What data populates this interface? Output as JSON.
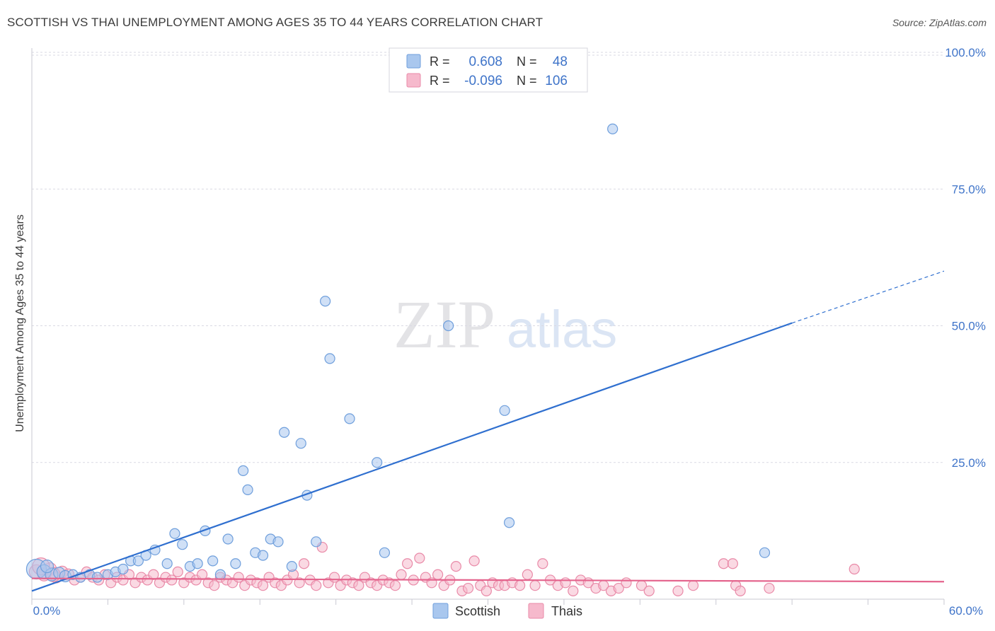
{
  "title": "SCOTTISH VS THAI UNEMPLOYMENT AMONG AGES 35 TO 44 YEARS CORRELATION CHART",
  "source": "Source: ZipAtlas.com",
  "watermark": {
    "zip": "ZIP",
    "atlas": "atlas"
  },
  "colors": {
    "scottish_fill": "#a9c7ee",
    "scottish_stroke": "#6f9fdc",
    "scottish_line": "#2f6fcf",
    "thai_fill": "#f6b9cc",
    "thai_stroke": "#e98aa8",
    "thai_line": "#e4648d",
    "tick_label": "#3f74c9",
    "grid": "#d9d9e3"
  },
  "legend": {
    "rows": [
      {
        "r_label": "R =",
        "r_value": "0.608",
        "n_label": "N =",
        "n_value": "48"
      },
      {
        "r_label": "R =",
        "r_value": "-0.096",
        "n_label": "N =",
        "n_value": "106"
      }
    ],
    "bottom": [
      "Scottish",
      "Thais"
    ]
  },
  "chart_data": {
    "type": "scatter",
    "title": "SCOTTISH VS THAI UNEMPLOYMENT AMONG AGES 35 TO 44 YEARS CORRELATION CHART",
    "xlabel": "",
    "ylabel": "Unemployment Among Ages 35 to 44 years",
    "xlim": [
      0,
      60
    ],
    "ylim": [
      0,
      100
    ],
    "x_tick_labels": [
      "0.0%",
      "60.0%"
    ],
    "y_tick_labels": [
      "25.0%",
      "50.0%",
      "75.0%",
      "100.0%"
    ],
    "y_ticks": [
      25,
      50,
      75,
      100
    ],
    "series": [
      {
        "name": "Scottish",
        "r": 0.608,
        "n": 48,
        "trend": {
          "x0": 0,
          "y0": 1.5,
          "x1": 50,
          "y1": 50.5,
          "dash_to_x": 60,
          "dash_to_y": 60
        },
        "points": [
          [
            0.3,
            5.5,
            14
          ],
          [
            0.8,
            5.0,
            10
          ],
          [
            1.3,
            4.5,
            9
          ],
          [
            1.8,
            4.8,
            8
          ],
          [
            2.2,
            4.2,
            8
          ],
          [
            2.7,
            4.5,
            7
          ],
          [
            3.2,
            4.0,
            7
          ],
          [
            3.8,
            4.5,
            7
          ],
          [
            4.3,
            4.0,
            7
          ],
          [
            5.0,
            4.5,
            7
          ],
          [
            5.5,
            5.0,
            7
          ],
          [
            6.0,
            5.5,
            7
          ],
          [
            6.5,
            7.0,
            7
          ],
          [
            7.0,
            7.0,
            7
          ],
          [
            7.5,
            8.0,
            7
          ],
          [
            8.1,
            9.0,
            7
          ],
          [
            8.9,
            6.5,
            7
          ],
          [
            9.4,
            12.0,
            7
          ],
          [
            9.9,
            10.0,
            7
          ],
          [
            10.4,
            6.0,
            7
          ],
          [
            10.9,
            6.5,
            7
          ],
          [
            11.4,
            12.5,
            7
          ],
          [
            11.9,
            7.0,
            7
          ],
          [
            12.4,
            4.5,
            7
          ],
          [
            12.9,
            11.0,
            7
          ],
          [
            13.4,
            6.5,
            7
          ],
          [
            13.9,
            23.5,
            7
          ],
          [
            14.2,
            20.0,
            7
          ],
          [
            14.7,
            8.5,
            7
          ],
          [
            15.2,
            8.0,
            7
          ],
          [
            15.7,
            11.0,
            7
          ],
          [
            16.2,
            10.5,
            7
          ],
          [
            16.6,
            30.5,
            7
          ],
          [
            17.1,
            6.0,
            7
          ],
          [
            17.7,
            28.5,
            7
          ],
          [
            18.1,
            19.0,
            7
          ],
          [
            18.7,
            10.5,
            7
          ],
          [
            19.3,
            54.5,
            7
          ],
          [
            19.6,
            44.0,
            7
          ],
          [
            20.9,
            33.0,
            7
          ],
          [
            22.7,
            25.0,
            7
          ],
          [
            23.2,
            8.5,
            7
          ],
          [
            27.4,
            50.0,
            7
          ],
          [
            31.1,
            34.5,
            7
          ],
          [
            31.4,
            14.0,
            7
          ],
          [
            38.2,
            86.0,
            7
          ],
          [
            48.2,
            8.5,
            7
          ],
          [
            1.0,
            6.0,
            9
          ]
        ]
      },
      {
        "name": "Thais",
        "r": -0.096,
        "n": 106,
        "trend": {
          "x0": 0,
          "y0": 3.8,
          "x1": 60,
          "y1": 3.2
        },
        "points": [
          [
            0.3,
            5.0,
            10
          ],
          [
            0.8,
            4.5,
            9
          ],
          [
            1.2,
            5.5,
            9
          ],
          [
            1.6,
            4.0,
            8
          ],
          [
            2.0,
            5.0,
            8
          ],
          [
            2.4,
            4.5,
            8
          ],
          [
            2.8,
            3.5,
            7
          ],
          [
            3.2,
            4.0,
            7
          ],
          [
            3.6,
            5.0,
            7
          ],
          [
            4.0,
            4.0,
            7
          ],
          [
            4.4,
            3.5,
            7
          ],
          [
            4.8,
            4.5,
            7
          ],
          [
            5.2,
            3.0,
            7
          ],
          [
            5.6,
            4.0,
            7
          ],
          [
            6.0,
            3.5,
            7
          ],
          [
            6.4,
            4.5,
            7
          ],
          [
            6.8,
            3.0,
            7
          ],
          [
            7.2,
            4.0,
            7
          ],
          [
            7.6,
            3.5,
            7
          ],
          [
            8.0,
            4.5,
            7
          ],
          [
            8.4,
            3.0,
            7
          ],
          [
            8.8,
            4.0,
            7
          ],
          [
            9.2,
            3.5,
            7
          ],
          [
            9.6,
            5.0,
            7
          ],
          [
            10.0,
            3.0,
            7
          ],
          [
            10.4,
            4.0,
            7
          ],
          [
            10.8,
            3.5,
            7
          ],
          [
            11.2,
            4.5,
            7
          ],
          [
            11.6,
            3.0,
            7
          ],
          [
            12.0,
            2.5,
            7
          ],
          [
            12.4,
            4.0,
            7
          ],
          [
            12.8,
            3.5,
            7
          ],
          [
            13.2,
            3.0,
            7
          ],
          [
            13.6,
            4.0,
            7
          ],
          [
            14.0,
            2.5,
            7
          ],
          [
            14.4,
            3.5,
            7
          ],
          [
            14.8,
            3.0,
            7
          ],
          [
            15.2,
            2.5,
            7
          ],
          [
            15.6,
            4.0,
            7
          ],
          [
            16.0,
            3.0,
            7
          ],
          [
            16.4,
            2.5,
            7
          ],
          [
            16.8,
            3.5,
            7
          ],
          [
            17.2,
            4.5,
            7
          ],
          [
            17.6,
            3.0,
            7
          ],
          [
            17.9,
            6.5,
            7
          ],
          [
            18.3,
            3.5,
            7
          ],
          [
            18.7,
            2.5,
            7
          ],
          [
            19.1,
            9.5,
            7
          ],
          [
            19.5,
            3.0,
            7
          ],
          [
            19.9,
            4.0,
            7
          ],
          [
            20.3,
            2.5,
            7
          ],
          [
            20.7,
            3.5,
            7
          ],
          [
            21.1,
            3.0,
            7
          ],
          [
            21.5,
            2.5,
            7
          ],
          [
            21.9,
            4.0,
            7
          ],
          [
            22.3,
            3.0,
            7
          ],
          [
            22.7,
            2.5,
            7
          ],
          [
            23.1,
            3.5,
            7
          ],
          [
            23.5,
            3.0,
            7
          ],
          [
            23.9,
            2.5,
            7
          ],
          [
            24.3,
            4.5,
            7
          ],
          [
            24.7,
            6.5,
            7
          ],
          [
            25.1,
            3.5,
            7
          ],
          [
            25.5,
            7.5,
            7
          ],
          [
            25.9,
            4.0,
            7
          ],
          [
            26.3,
            3.0,
            7
          ],
          [
            26.7,
            4.5,
            7
          ],
          [
            27.1,
            2.5,
            7
          ],
          [
            27.5,
            3.5,
            7
          ],
          [
            27.9,
            6.0,
            7
          ],
          [
            28.3,
            1.5,
            7
          ],
          [
            28.7,
            2.0,
            7
          ],
          [
            29.1,
            7.0,
            7
          ],
          [
            29.5,
            2.5,
            7
          ],
          [
            29.9,
            1.5,
            7
          ],
          [
            30.3,
            3.0,
            7
          ],
          [
            30.7,
            2.5,
            7
          ],
          [
            31.1,
            2.5,
            7
          ],
          [
            31.6,
            3.0,
            7
          ],
          [
            32.1,
            2.5,
            7
          ],
          [
            32.6,
            4.5,
            7
          ],
          [
            33.1,
            2.5,
            7
          ],
          [
            33.6,
            6.5,
            7
          ],
          [
            34.1,
            3.5,
            7
          ],
          [
            34.6,
            2.5,
            7
          ],
          [
            35.1,
            3.0,
            7
          ],
          [
            35.6,
            1.5,
            7
          ],
          [
            36.1,
            3.5,
            7
          ],
          [
            36.6,
            3.0,
            7
          ],
          [
            37.1,
            2.0,
            7
          ],
          [
            37.6,
            2.5,
            7
          ],
          [
            38.1,
            1.5,
            7
          ],
          [
            38.6,
            2.0,
            7
          ],
          [
            39.1,
            3.0,
            7
          ],
          [
            40.1,
            2.5,
            7
          ],
          [
            40.6,
            1.5,
            7
          ],
          [
            42.5,
            1.5,
            7
          ],
          [
            43.5,
            2.5,
            7
          ],
          [
            45.5,
            6.5,
            7
          ],
          [
            46.1,
            6.5,
            7
          ],
          [
            46.3,
            2.5,
            7
          ],
          [
            46.6,
            1.5,
            7
          ],
          [
            48.5,
            2.0,
            7
          ],
          [
            54.1,
            5.5,
            7
          ],
          [
            0.6,
            6.0,
            12
          ],
          [
            1.4,
            4.5,
            10
          ]
        ]
      }
    ]
  }
}
